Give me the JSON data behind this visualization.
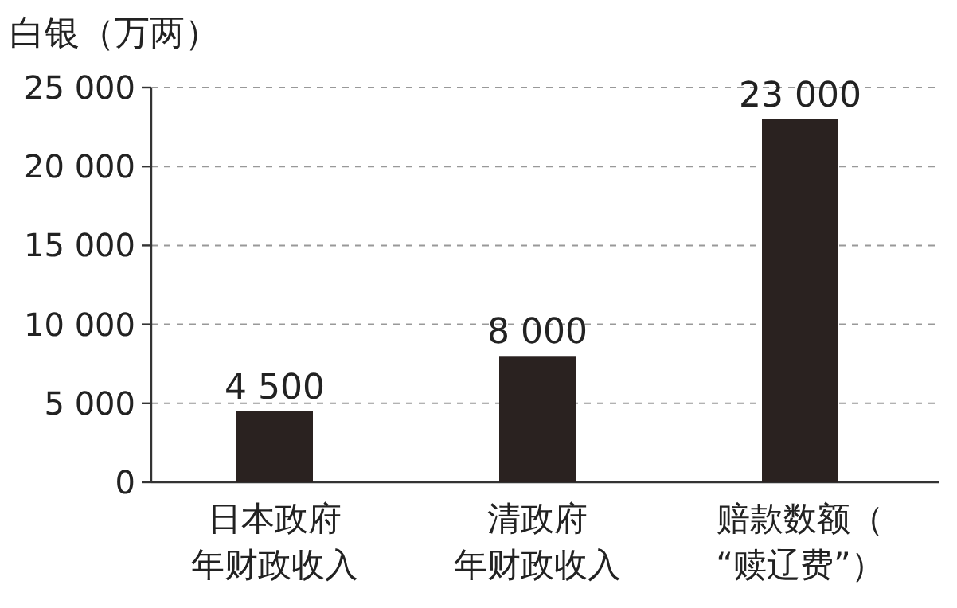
{
  "chart_data": {
    "type": "bar",
    "ylabel": "白银（万两）",
    "categories": [
      "日本政府年财政收入",
      "清政府年财政收入",
      "赔款数额（“赎辽费”）"
    ],
    "values": [
      4500,
      8000,
      23000
    ],
    "color": "#2a2220",
    "value_labels": [
      "4 500",
      "8 000",
      "23 000"
    ],
    "ylim": [
      0,
      25000
    ],
    "yticks": [
      {
        "value": 0,
        "label": "0"
      },
      {
        "value": 5000,
        "label": "5 000"
      },
      {
        "value": 10000,
        "label": "10 000"
      },
      {
        "value": 15000,
        "label": "15 000"
      },
      {
        "value": 20000,
        "label": "20 000"
      },
      {
        "value": 25000,
        "label": "25 000"
      }
    ],
    "grid": "y"
  }
}
